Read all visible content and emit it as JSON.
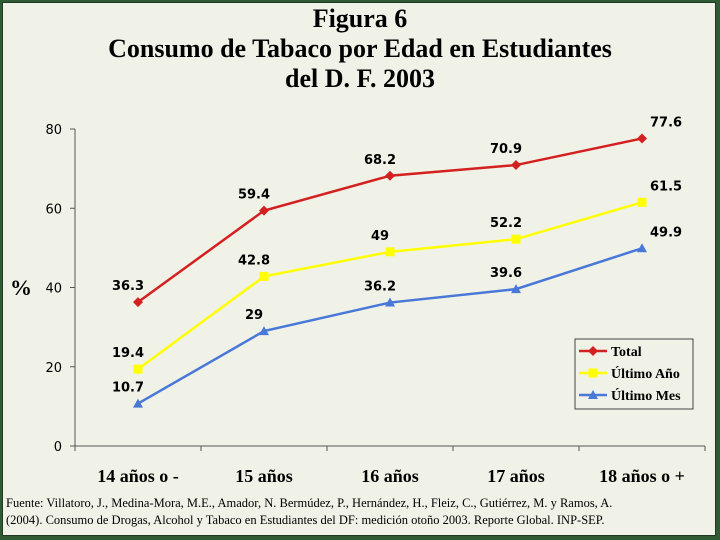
{
  "title_lines": [
    "Figura 6",
    "Consumo de Tabaco  por Edad en Estudiantes",
    "del D. F. 2003"
  ],
  "source": {
    "line1": "Fuente: Villatoro, J., Medina-Mora, M.E., Amador, N. Bermúdez, P., Hernández, H., Fleiz, C., Gutiérrez, M. y Ramos, A.",
    "line2": "(2004). Consumo de Drogas, Alcohol y Tabaco en Estudiantes del DF: medición otoño 2003. Reporte Global. INP-SEP."
  },
  "chart_data": {
    "type": "line",
    "title": "Consumo de Tabaco  por Edad en Estudiantes del D. F. 2003",
    "ylabel": "%",
    "xlabel": "",
    "ylim": [
      0,
      80
    ],
    "yticks": [
      0,
      20,
      40,
      60,
      80
    ],
    "categories": [
      "14 años o -",
      "15 años",
      "16 años",
      "17 años",
      "18 años o +"
    ],
    "grid": false,
    "legend_position": "bottom-right",
    "series": [
      {
        "name": "Total",
        "values": [
          36.3,
          59.4,
          68.2,
          70.9,
          77.6
        ],
        "color": "#d42020",
        "marker": "diamond"
      },
      {
        "name": "Último Año",
        "values": [
          19.4,
          42.8,
          49,
          52.2,
          61.5
        ],
        "color": "#ffff00",
        "marker": "square"
      },
      {
        "name": "Último Mes",
        "values": [
          10.7,
          29,
          36.2,
          39.6,
          49.9
        ],
        "color": "#4a78d8",
        "marker": "triangle"
      }
    ]
  }
}
